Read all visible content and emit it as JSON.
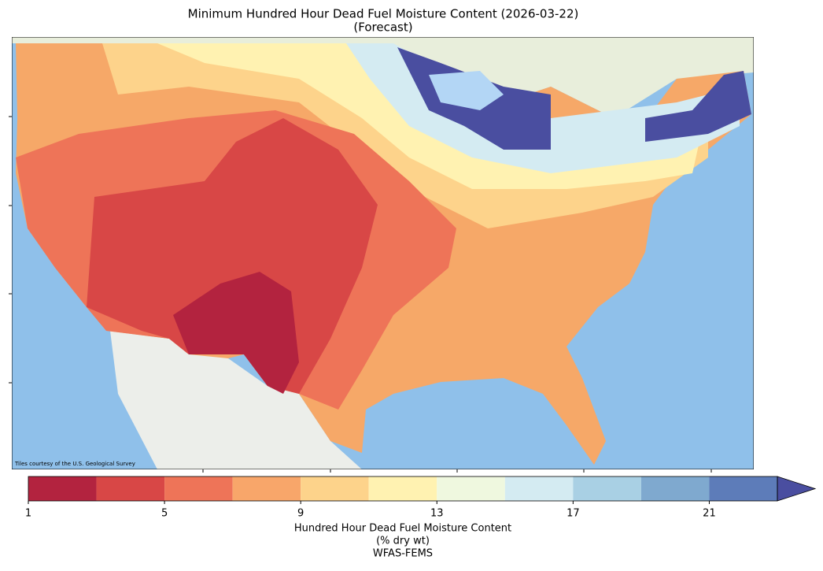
{
  "title": "Minimum Hundred Hour Dead Fuel Moisture Content (2026-03-22)",
  "subtitle": "(Forecast)",
  "attribution": "Tiles courtesy of the U.S. Geological Survey",
  "colorbar": {
    "label": "Hundred Hour Dead Fuel Moisture Content",
    "units": "(% dry wt)",
    "source": "WFAS-FEMS",
    "bounds": [
      1,
      3,
      5,
      7,
      9,
      11,
      13,
      15,
      17,
      19,
      21,
      23
    ],
    "colors": [
      "#b3233f",
      "#d84746",
      "#ee7458",
      "#f8a66a",
      "#fdd38b",
      "#fff2b1",
      "#eff8df",
      "#d4ebf2",
      "#a9d0e4",
      "#7fa9cf",
      "#5d7cb9"
    ],
    "extend_color": "#4a4ea0",
    "ticks": [
      1,
      5,
      9,
      13,
      17,
      21
    ]
  }
}
